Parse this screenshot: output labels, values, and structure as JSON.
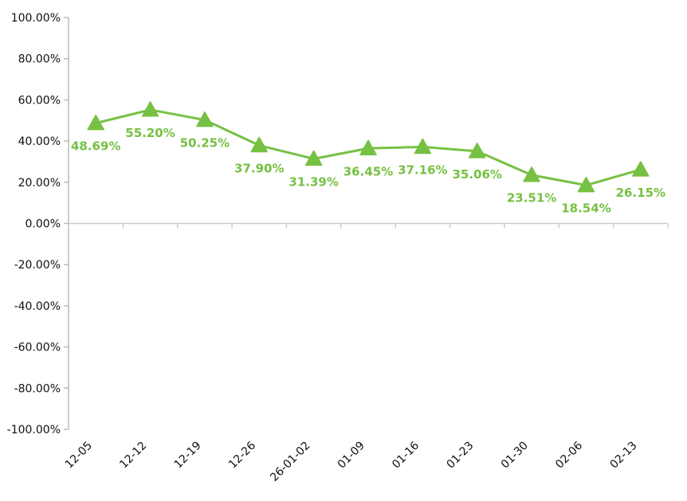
{
  "chart_data": {
    "type": "line",
    "title": "",
    "xlabel": "",
    "ylabel": "",
    "categories": [
      "12-05",
      "12-12",
      "12-19",
      "12-26",
      "26-01-02",
      "01-09",
      "01-16",
      "01-23",
      "01-30",
      "02-06",
      "02-13"
    ],
    "series": [
      {
        "name": "",
        "values": [
          48.69,
          55.2,
          50.25,
          37.9,
          31.39,
          36.45,
          37.16,
          35.06,
          23.51,
          18.54,
          26.15
        ],
        "labels": [
          "48.69%",
          "55.20%",
          "50.25%",
          "37.90%",
          "31.39%",
          "36.45%",
          "37.16%",
          "35.06%",
          "23.51%",
          "18.54%",
          "26.15%"
        ],
        "marker": "triangle",
        "color": "#76c043"
      }
    ],
    "ylim": [
      -100,
      100
    ],
    "yticks": [
      100,
      80,
      60,
      40,
      20,
      0,
      -20,
      -40,
      -60,
      -80,
      -100
    ],
    "ytick_labels": [
      "100.00%",
      "80.00%",
      "60.00%",
      "40.00%",
      "20.00%",
      "0.00%",
      "-20.00%",
      "-40.00%",
      "-60.00%",
      "-80.00%",
      "-100.00%"
    ],
    "grid": false,
    "legend": "none"
  }
}
